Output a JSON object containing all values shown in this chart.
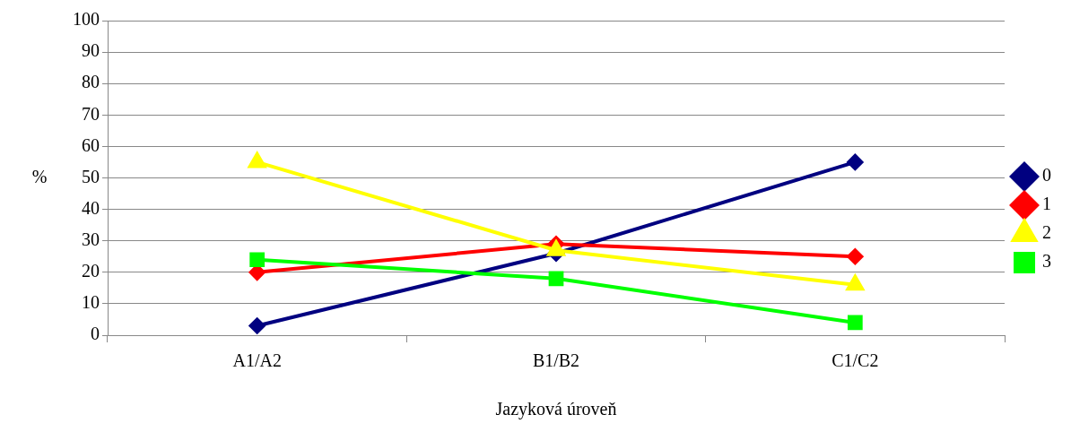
{
  "chart_data": {
    "type": "line",
    "xlabel": "Jazyková úroveň",
    "ylabel": "%",
    "categories": [
      "A1/A2",
      "B1/B2",
      "C1/C2"
    ],
    "ylim": [
      0,
      100
    ],
    "yticks": [
      0,
      10,
      20,
      30,
      40,
      50,
      60,
      70,
      80,
      90,
      100
    ],
    "grid": "y",
    "legend": "right",
    "line_style": "solid",
    "series": [
      {
        "name": "0",
        "color": "#000080",
        "marker": "diamond",
        "values": [
          3,
          26,
          55
        ]
      },
      {
        "name": "1",
        "color": "#ff0000",
        "marker": "diamond",
        "values": [
          20,
          29,
          25
        ]
      },
      {
        "name": "2",
        "color": "#ffff00",
        "marker": "triangle",
        "values": [
          55,
          27,
          16
        ]
      },
      {
        "name": "3",
        "color": "#00ff00",
        "marker": "square",
        "values": [
          24,
          18,
          4
        ]
      }
    ]
  }
}
